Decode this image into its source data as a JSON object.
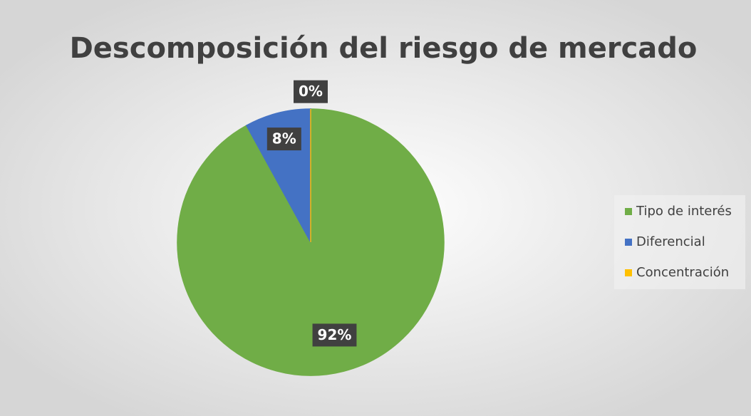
{
  "chart_data": {
    "type": "pie",
    "title": "Descomposición del riesgo de mercado",
    "categories": [
      "Tipo de interés",
      "Diferencial",
      "Concentración"
    ],
    "values": [
      92,
      8,
      0
    ],
    "value_labels": [
      "92%",
      "8%",
      "0%"
    ],
    "colors": [
      "#70ad47",
      "#4472c4",
      "#ffc000"
    ],
    "legend": "right"
  }
}
